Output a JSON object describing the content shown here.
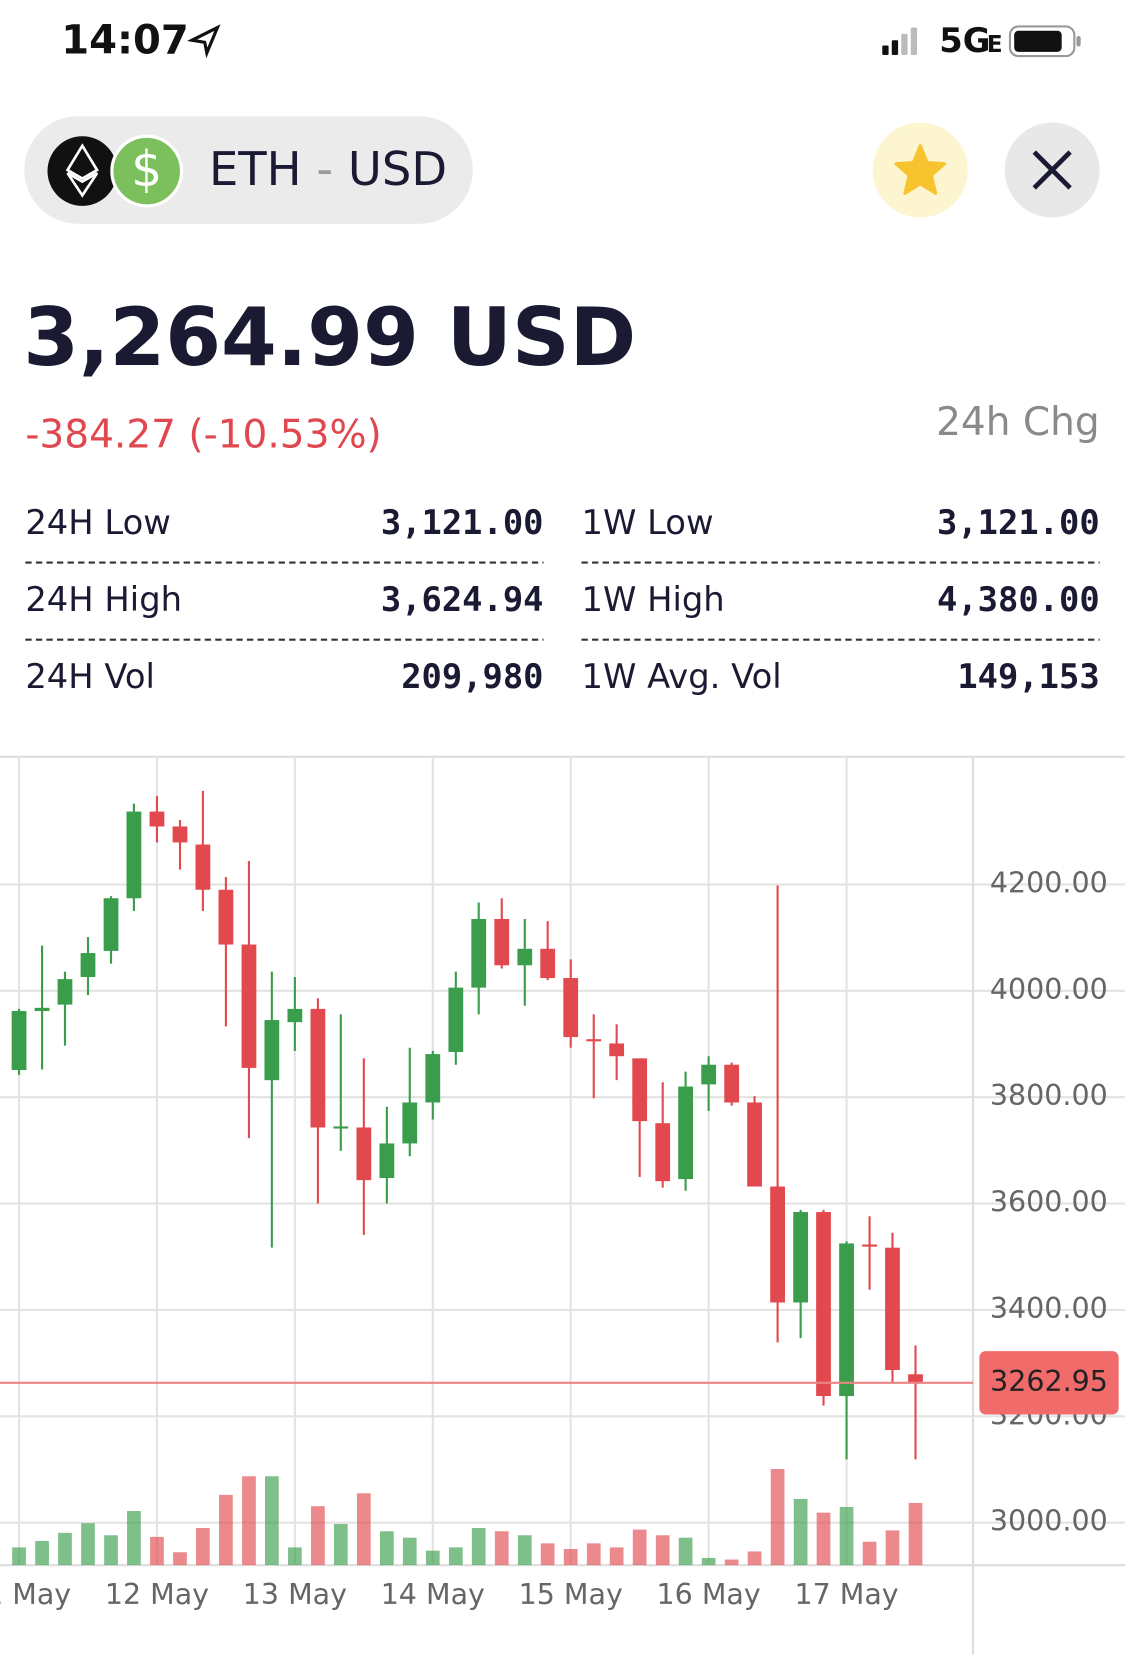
{
  "status_bar": {
    "time": "14:07",
    "network": "5G",
    "network_sub": "E"
  },
  "header": {
    "base": "ETH",
    "separator": "-",
    "quote": "USD"
  },
  "price": {
    "value": "3,264.99 USD",
    "change": "-384.27 (-10.53%)",
    "change_label": "24h Chg"
  },
  "stats": {
    "rows": [
      [
        {
          "label": "24H Low",
          "value": "3,121.00"
        },
        {
          "label": "1W Low",
          "value": "3,121.00"
        }
      ],
      [
        {
          "label": "24H High",
          "value": "3,624.94"
        },
        {
          "label": "1W High",
          "value": "4,380.00"
        }
      ],
      [
        {
          "label": "24H Vol",
          "value": "209,980"
        },
        {
          "label": "1W Avg. Vol",
          "value": "149,153"
        }
      ]
    ]
  },
  "chart_data": {
    "type": "candlestick",
    "x": [
      11,
      11.167,
      11.333,
      11.5,
      11.667,
      11.833,
      12,
      12.167,
      12.333,
      12.5,
      12.667,
      12.833,
      13,
      13.167,
      13.333,
      13.5,
      13.667,
      13.833,
      14,
      14.167,
      14.333,
      14.5,
      14.667,
      14.833,
      15,
      15.167,
      15.333,
      15.5,
      15.667,
      15.833,
      16,
      16.167,
      16.333,
      16.5,
      16.667,
      16.833,
      17,
      17.167,
      17.333,
      17.5
    ],
    "open": [
      3851,
      3962,
      3974,
      4026,
      4075,
      4174,
      4337,
      4309,
      4275,
      4190,
      4087,
      3832,
      3941,
      3966,
      3741,
      3743,
      3648,
      3713,
      3790,
      3885,
      4006,
      4135,
      4048,
      4079,
      4024,
      3909,
      3901,
      3873,
      3751,
      3646,
      3824,
      3861,
      3790,
      3632,
      3414,
      3584,
      3238,
      3523,
      3517,
      3279
    ],
    "high": [
      3966,
      4085,
      4036,
      4101,
      4178,
      4352,
      4366,
      4321,
      4376,
      4214,
      4244,
      4036,
      4026,
      3986,
      3956,
      3873,
      3782,
      3893,
      3887,
      4036,
      4166,
      4174,
      4135,
      4131,
      4059,
      3956,
      3937,
      3873,
      3828,
      3848,
      3877,
      3865,
      3802,
      4198,
      3588,
      3588,
      3529,
      3576,
      3545,
      3333
    ],
    "low": [
      3842,
      3852,
      3897,
      3992,
      4051,
      4150,
      4279,
      4228,
      4150,
      3933,
      3723,
      3517,
      3887,
      3600,
      3699,
      3541,
      3600,
      3689,
      3758,
      3861,
      3956,
      4042,
      3972,
      4020,
      3893,
      3798,
      3832,
      3650,
      3630,
      3624,
      3774,
      3784,
      3632,
      3339,
      3347,
      3220,
      3119,
      3438,
      3263,
      3119
    ],
    "close": [
      3962,
      3968,
      4022,
      4071,
      4174,
      4337,
      4309,
      4279,
      4190,
      4087,
      3855,
      3945,
      3966,
      3743,
      3745,
      3644,
      3713,
      3790,
      3881,
      4006,
      4135,
      4048,
      4079,
      4024,
      3913,
      3905,
      3877,
      3755,
      3642,
      3820,
      3861,
      3790,
      3632,
      3414,
      3584,
      3238,
      3525,
      3519,
      3287,
      3263
    ],
    "volume": [
      22,
      30,
      40,
      52,
      37,
      67,
      35,
      16,
      46,
      87,
      110,
      110,
      22,
      73,
      51,
      89,
      42,
      34,
      18,
      22,
      46,
      42,
      37,
      27,
      20,
      27,
      22,
      44,
      37,
      34,
      9,
      7,
      17,
      119,
      82,
      65,
      72,
      29,
      43,
      77
    ],
    "vlim": [
      0,
      1000
    ],
    "xlim": [
      10.862,
      17.917
    ],
    "xticks": [
      {
        "value": 11,
        "label": "11 May"
      },
      {
        "value": 12,
        "label": "12 May"
      },
      {
        "value": 13,
        "label": "13 May"
      },
      {
        "value": 14,
        "label": "14 May"
      },
      {
        "value": 15,
        "label": "15 May"
      },
      {
        "value": 16,
        "label": "16 May"
      },
      {
        "value": 17,
        "label": "17 May"
      }
    ],
    "ylim": [
      2920,
      4440
    ],
    "yticks": [
      {
        "value": 3000,
        "label": "3000.00"
      },
      {
        "value": 3200,
        "label": "3200.00"
      },
      {
        "value": 3400,
        "label": "3400.00"
      },
      {
        "value": 3600,
        "label": "3600.00"
      },
      {
        "value": 3800,
        "label": "3800.00"
      },
      {
        "value": 4000,
        "label": "4000.00"
      },
      {
        "value": 4200,
        "label": "4200.00"
      }
    ],
    "last_price": {
      "value": 3262.95,
      "label": "3262.95"
    },
    "up_color": "#3a9d4b",
    "down_color": "#e2494f",
    "grid": true
  }
}
